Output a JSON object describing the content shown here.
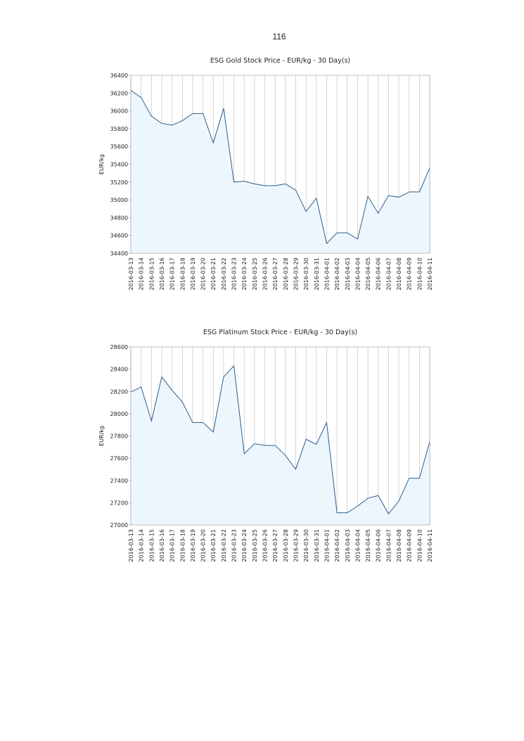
{
  "page_number": "116",
  "chart_data": [
    {
      "type": "line",
      "title": "ESG Gold Stock Price - EUR/kg - 30 Day(s)",
      "y_label": "EUR/kg",
      "categories": [
        "2016-03-13",
        "2016-03-14",
        "2016-03-15",
        "2016-03-16",
        "2016-03-17",
        "2016-03-18",
        "2016-03-19",
        "2016-03-20",
        "2016-03-21",
        "2016-03-22",
        "2016-03-23",
        "2016-03-24",
        "2016-03-25",
        "2016-03-26",
        "2016-03-27",
        "2016-03-28",
        "2016-03-29",
        "2016-03-30",
        "2016-03-31",
        "2016-04-01",
        "2016-04-02",
        "2016-04-03",
        "2016-04-04",
        "2016-04-05",
        "2016-04-06",
        "2016-04-07",
        "2016-04-08",
        "2016-04-09",
        "2016-04-10",
        "2016-04-11"
      ],
      "values": [
        36230,
        36150,
        35940,
        35860,
        35840,
        35890,
        35970,
        35970,
        35640,
        36030,
        35200,
        35210,
        35180,
        35160,
        35160,
        35180,
        35110,
        34870,
        35020,
        34510,
        34630,
        34630,
        34560,
        35040,
        34850,
        35050,
        35030,
        35090,
        35090,
        35360
      ],
      "color": "#2b5f8e",
      "fill": "#eef6fd",
      "ylim": [
        34400,
        36400
      ],
      "yticks": [
        34400,
        34600,
        34800,
        35000,
        35200,
        35400,
        35600,
        35800,
        36000,
        36200,
        36400
      ],
      "grid": true
    },
    {
      "type": "line",
      "title": "ESG Platinum Stock Price - EUR/kg - 30 Day(s)",
      "y_label": "EUR/kg",
      "categories": [
        "2016-03-13",
        "2016-03-14",
        "2016-03-15",
        "2016-03-16",
        "2016-03-17",
        "2016-03-18",
        "2016-03-19",
        "2016-03-20",
        "2016-03-21",
        "2016-03-22",
        "2016-03-23",
        "2016-03-24",
        "2016-03-25",
        "2016-03-26",
        "2016-03-27",
        "2016-03-28",
        "2016-03-29",
        "2016-03-30",
        "2016-03-31",
        "2016-04-01",
        "2016-04-02",
        "2016-04-03",
        "2016-04-04",
        "2016-04-05",
        "2016-04-06",
        "2016-04-07",
        "2016-04-08",
        "2016-04-09",
        "2016-04-10",
        "2016-04-11"
      ],
      "values": [
        28195,
        28240,
        27935,
        28330,
        28210,
        28105,
        27920,
        27920,
        27835,
        28330,
        28430,
        27640,
        27730,
        27715,
        27715,
        27625,
        27500,
        27770,
        27725,
        27920,
        27110,
        27110,
        27170,
        27240,
        27265,
        27100,
        27215,
        27420,
        27420,
        27750
      ],
      "color": "#2b5f8e",
      "fill": "#eef6fd",
      "ylim": [
        27000,
        28600
      ],
      "yticks": [
        27000,
        27200,
        27400,
        27600,
        27800,
        28000,
        28200,
        28400,
        28600
      ],
      "grid": true
    }
  ]
}
